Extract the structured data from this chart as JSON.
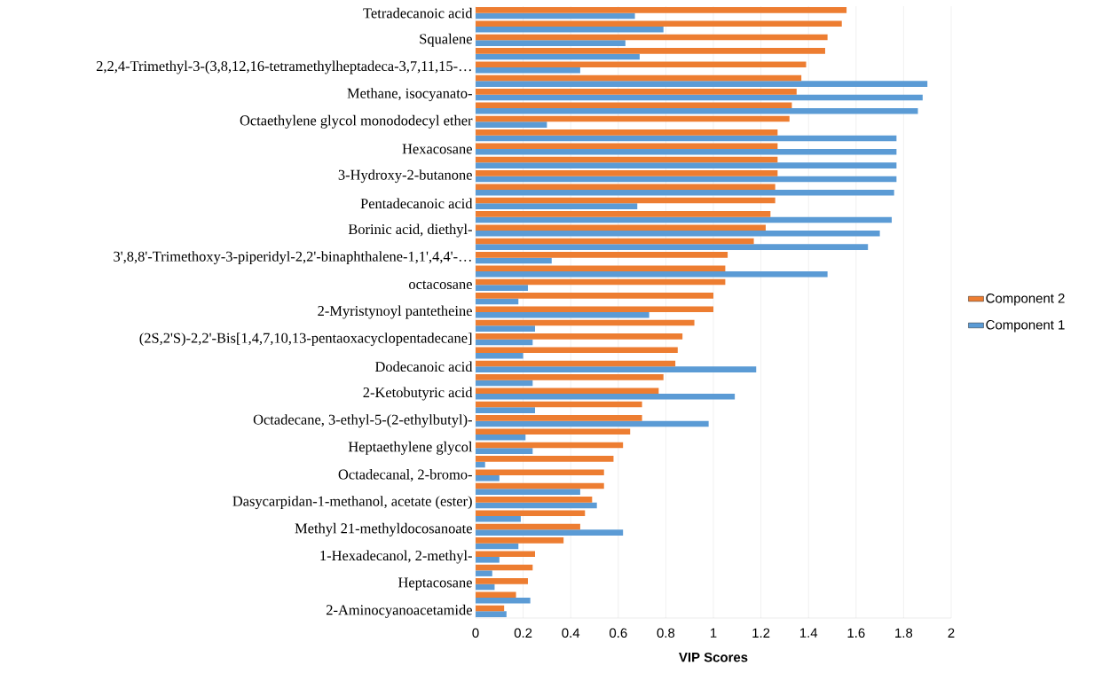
{
  "chart_data": {
    "type": "bar",
    "orientation": "horizontal",
    "xlabel": "VIP Scores",
    "categories": [
      "Tetradecanoic acid",
      null,
      "Squalene",
      null,
      "2,2,4-Trimethyl-3-(3,8,12,16-tetramethylheptadeca-3,7,11,15-…",
      null,
      "Methane, isocyanato-",
      null,
      "Octaethylene glycol monododecyl ether",
      null,
      "Hexacosane",
      null,
      "3-Hydroxy-2-butanone",
      null,
      "Pentadecanoic acid",
      null,
      "Borinic acid, diethyl-",
      null,
      "3',8,8'-Trimethoxy-3-piperidyl-2,2'-binaphthalene-1,1',4,4'-…",
      null,
      "octacosane",
      null,
      "2-Myristynoyl pantetheine",
      null,
      "(2S,2'S)-2,2'-Bis[1,4,7,10,13-pentaoxacyclopentadecane]",
      null,
      "Dodecanoic acid",
      null,
      "2-Ketobutyric acid",
      null,
      "Octadecane, 3-ethyl-5-(2-ethylbutyl)-",
      null,
      "Heptaethylene glycol",
      null,
      "Octadecanal, 2-bromo-",
      null,
      "Dasycarpidan-1-methanol, acetate (ester)",
      null,
      "Methyl 21-methyldocosanoate",
      null,
      "1-Hexadecanol, 2-methyl-",
      null,
      "Heptacosane",
      null,
      "2-Aminocyanoacetamide"
    ],
    "series": [
      {
        "name": "Component 1",
        "color": "#5b9bd5",
        "values": [
          0.67,
          0.79,
          0.63,
          0.69,
          0.44,
          1.9,
          1.88,
          1.86,
          0.3,
          1.77,
          1.77,
          1.77,
          1.77,
          1.76,
          0.68,
          1.75,
          1.7,
          1.65,
          0.32,
          1.48,
          0.22,
          0.18,
          0.73,
          0.25,
          0.24,
          0.2,
          1.18,
          0.24,
          1.09,
          0.25,
          0.98,
          0.21,
          0.24,
          0.04,
          0.1,
          0.44,
          0.51,
          0.19,
          0.62,
          0.18,
          0.1,
          0.07,
          0.08,
          0.23,
          0.13
        ]
      },
      {
        "name": "Component 2",
        "color": "#ed7d31",
        "values": [
          1.56,
          1.54,
          1.48,
          1.47,
          1.39,
          1.37,
          1.35,
          1.33,
          1.32,
          1.27,
          1.27,
          1.27,
          1.27,
          1.26,
          1.26,
          1.24,
          1.22,
          1.17,
          1.06,
          1.05,
          1.05,
          1.0,
          1.0,
          0.92,
          0.87,
          0.85,
          0.84,
          0.79,
          0.77,
          0.7,
          0.7,
          0.65,
          0.62,
          0.58,
          0.54,
          0.54,
          0.49,
          0.46,
          0.44,
          0.37,
          0.25,
          0.24,
          0.22,
          0.17,
          0.12
        ]
      }
    ],
    "xlim": [
      0,
      2
    ],
    "xticks": [
      0,
      0.2,
      0.4,
      0.6,
      0.8,
      1,
      1.2,
      1.4,
      1.6,
      1.8,
      2
    ],
    "grid": "x",
    "legend": "right"
  }
}
